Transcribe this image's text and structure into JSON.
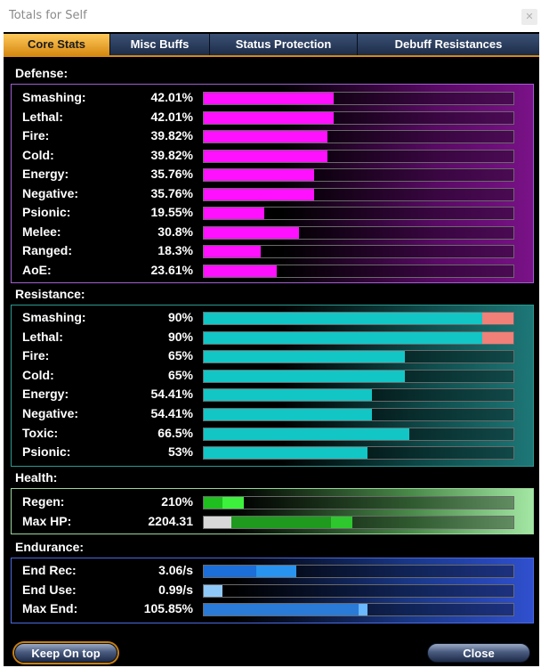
{
  "window": {
    "title": "Totals for Self"
  },
  "tabs": [
    {
      "label": "Core Stats",
      "active": true
    },
    {
      "label": "Misc Buffs",
      "active": false
    },
    {
      "label": "Status Protection",
      "active": false
    },
    {
      "label": "Debuff Resistances",
      "active": false
    }
  ],
  "defense": {
    "heading": "Defense:",
    "color": "#ff10ff",
    "rows": [
      {
        "label": "Smashing:",
        "value": "42.01%",
        "pct": 42.01
      },
      {
        "label": "Lethal:",
        "value": "42.01%",
        "pct": 42.01
      },
      {
        "label": "Fire:",
        "value": "39.82%",
        "pct": 39.82
      },
      {
        "label": "Cold:",
        "value": "39.82%",
        "pct": 39.82
      },
      {
        "label": "Energy:",
        "value": "35.76%",
        "pct": 35.76
      },
      {
        "label": "Negative:",
        "value": "35.76%",
        "pct": 35.76
      },
      {
        "label": "Psionic:",
        "value": "19.55%",
        "pct": 19.55
      },
      {
        "label": "Melee:",
        "value": "30.8%",
        "pct": 30.8
      },
      {
        "label": "Ranged:",
        "value": "18.3%",
        "pct": 18.3
      },
      {
        "label": "AoE:",
        "value": "23.61%",
        "pct": 23.61
      }
    ]
  },
  "resistance": {
    "heading": "Resistance:",
    "color": "#12c6c6",
    "overcap_color": "#f08078",
    "rows": [
      {
        "label": "Smashing:",
        "value": "90%",
        "pct": 90,
        "over": 10
      },
      {
        "label": "Lethal:",
        "value": "90%",
        "pct": 90,
        "over": 10
      },
      {
        "label": "Fire:",
        "value": "65%",
        "pct": 65
      },
      {
        "label": "Cold:",
        "value": "65%",
        "pct": 65
      },
      {
        "label": "Energy:",
        "value": "54.41%",
        "pct": 54.41
      },
      {
        "label": "Negative:",
        "value": "54.41%",
        "pct": 54.41
      },
      {
        "label": "Toxic:",
        "value": "66.5%",
        "pct": 66.5
      },
      {
        "label": "Psionic:",
        "value": "53%",
        "pct": 53
      }
    ]
  },
  "health": {
    "heading": "Health:",
    "rows": [
      {
        "label": "Regen:",
        "value": "210%",
        "fill_color": "#1fbf1f",
        "pct": 6,
        "fill2_color": "#3cf03c",
        "pct2": 7
      },
      {
        "label": "Max HP:",
        "value": "2204.31",
        "fill_color": "#d8d8d8",
        "pct": 9,
        "fill2_color": "#1f9a1f",
        "pct2": 32,
        "fill3_color": "#2ec82e",
        "pct3": 7
      }
    ]
  },
  "endurance": {
    "heading": "Endurance:",
    "rows": [
      {
        "label": "End Rec:",
        "value": "3.06/s",
        "fill_color": "#1c6ed8",
        "pct": 17,
        "fill2_color": "#2894f0",
        "pct2": 13
      },
      {
        "label": "End Use:",
        "value": "0.99/s",
        "fill_color": "#8ec8f8",
        "pct": 6
      },
      {
        "label": "Max End:",
        "value": "105.85%",
        "fill_color": "#2a7ad8",
        "pct": 50,
        "fill2_color": "#6ab8ff",
        "pct2": 3
      }
    ]
  },
  "buttons": {
    "keep_on_top": "Keep On top",
    "close": "Close"
  }
}
